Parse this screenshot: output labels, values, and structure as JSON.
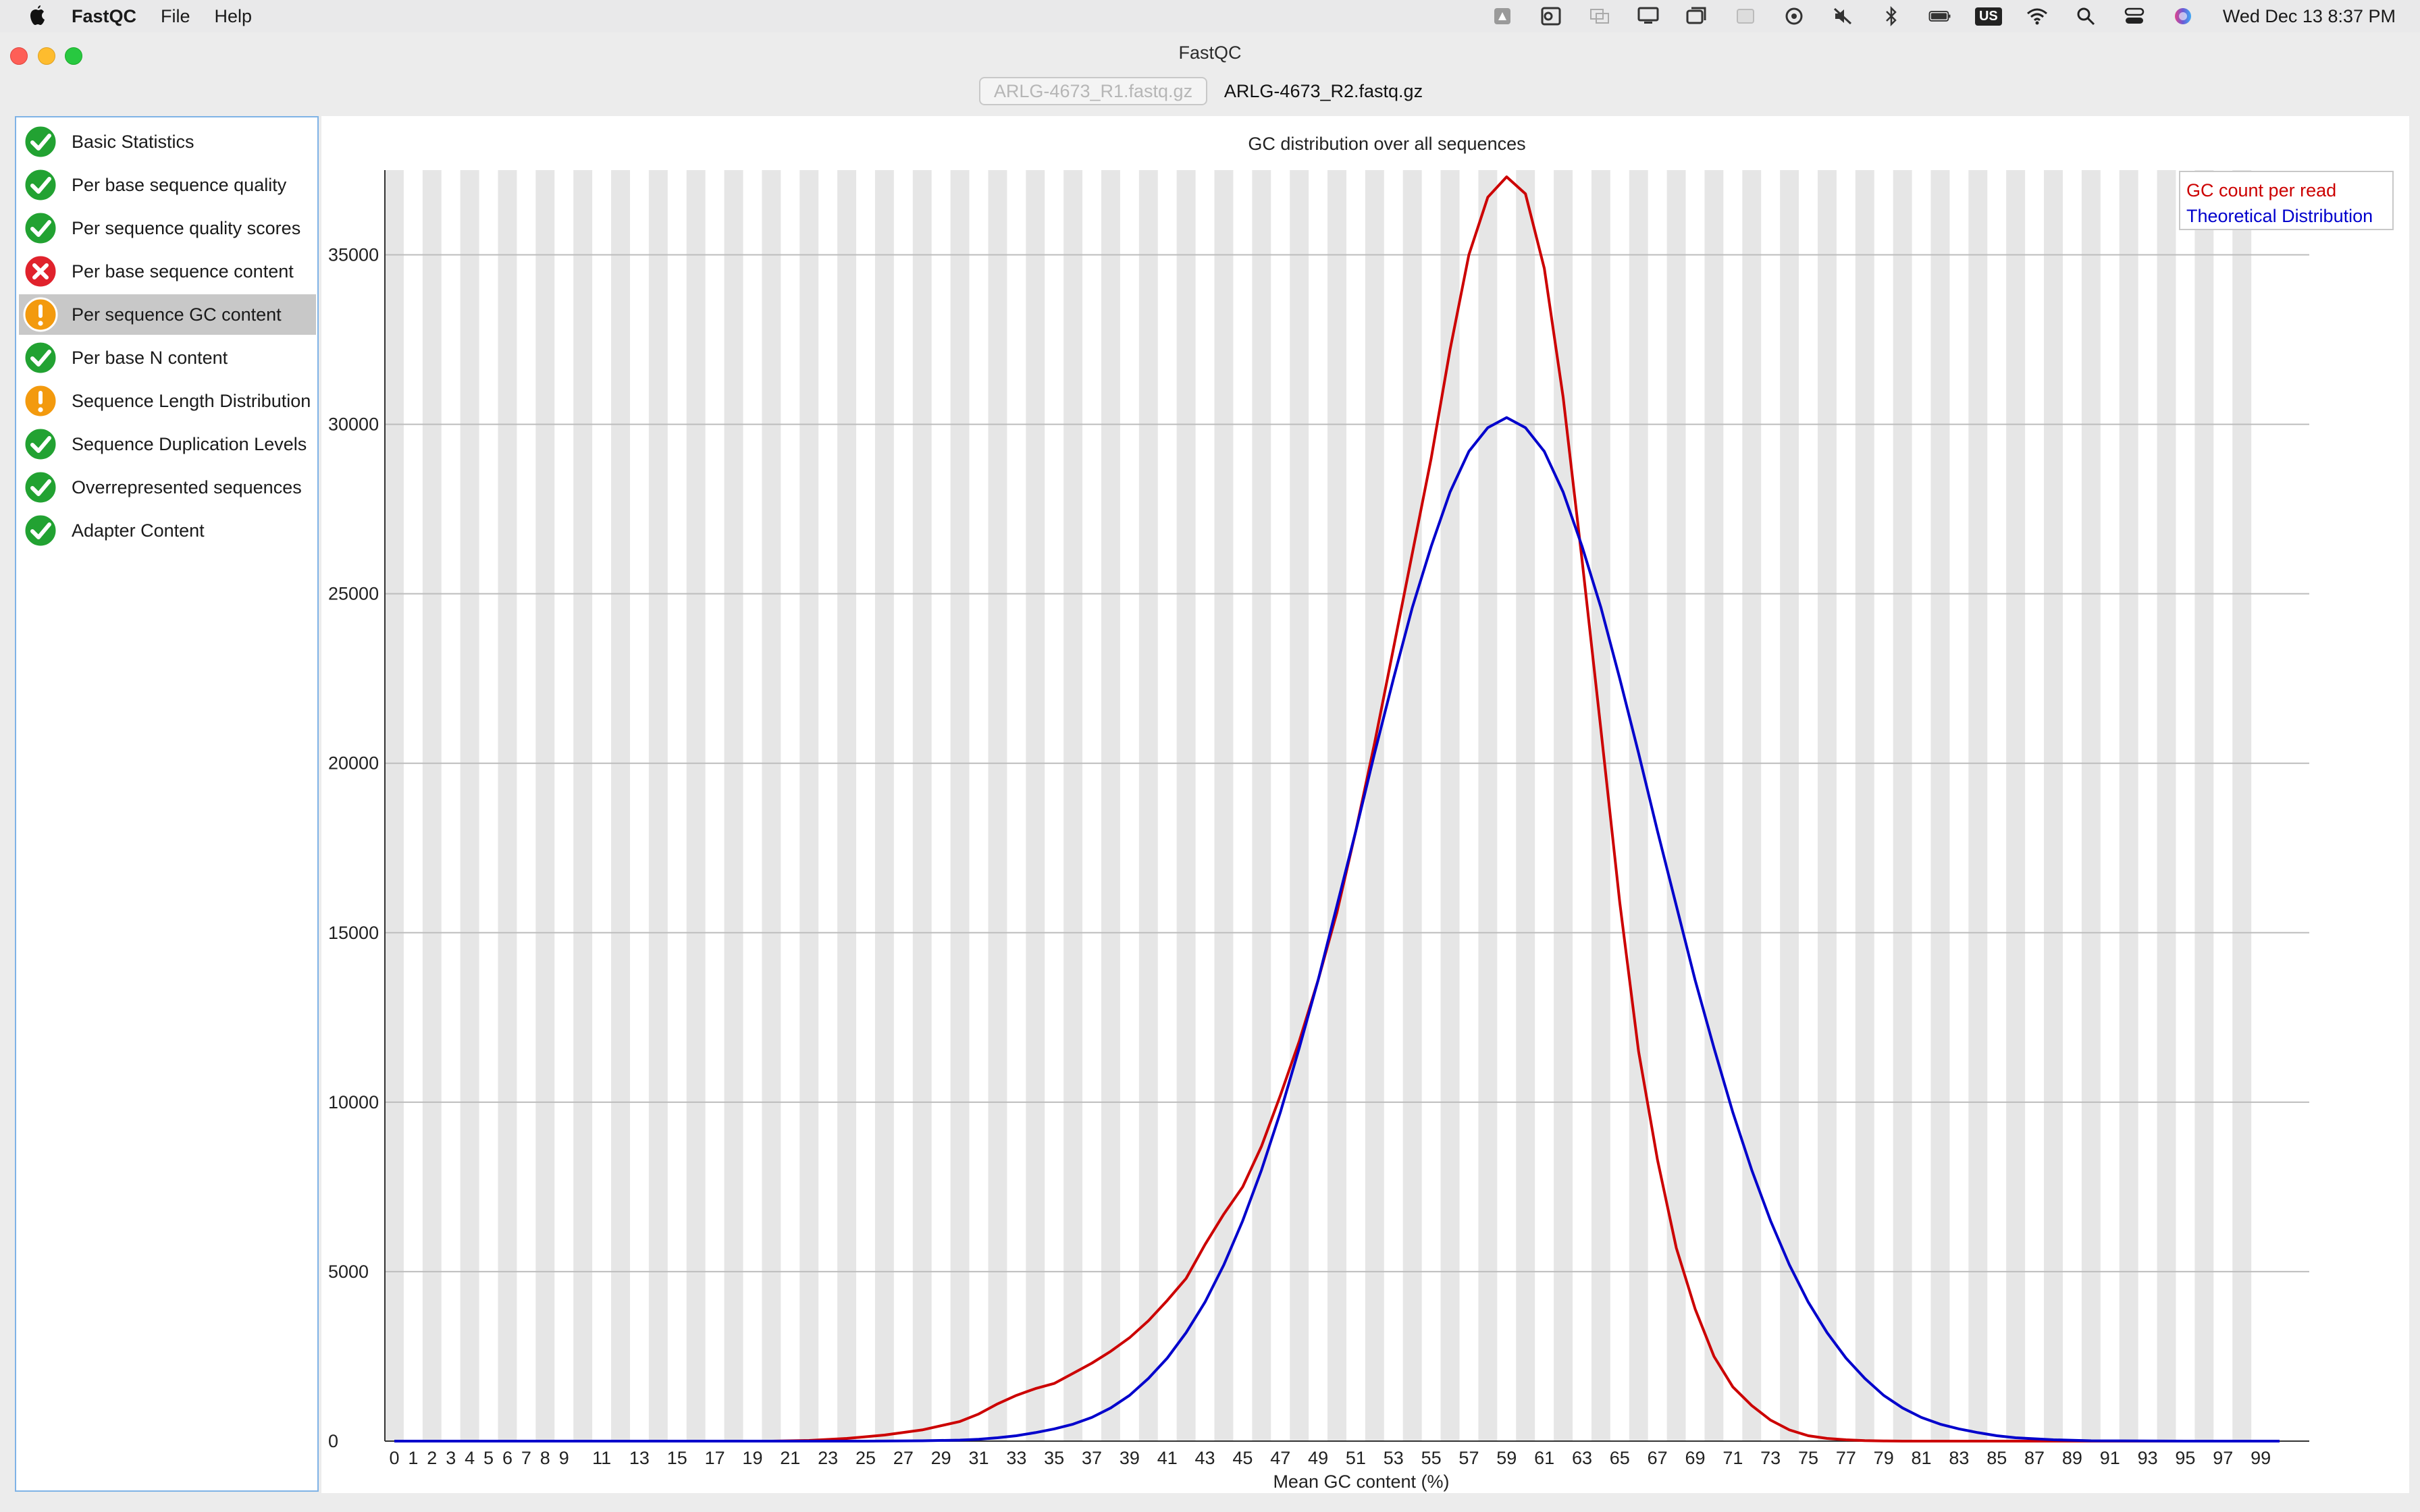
{
  "menubar": {
    "app_name": "FastQC",
    "menus": [
      "File",
      "Help"
    ],
    "status_icons": [
      "drive-icon",
      "outlook-icon",
      "screen-share-icon",
      "display-icon",
      "window-icon",
      "keyboard-brightness-icon",
      "vpn-icon",
      "mute-icon",
      "bluetooth-icon",
      "battery-icon",
      "input-source-icon",
      "wifi-icon",
      "spotlight-icon",
      "control-center-icon",
      "siri-icon"
    ],
    "input_source": "US",
    "clock": "Wed Dec 13  8:37 PM"
  },
  "window": {
    "title": "FastQC"
  },
  "file_tabs": [
    {
      "label": "ARLG-4673_R1.fastq.gz",
      "selected": false
    },
    {
      "label": "ARLG-4673_R2.fastq.gz",
      "selected": true
    }
  ],
  "modules": [
    {
      "label": "Basic Statistics",
      "status": "pass"
    },
    {
      "label": "Per base sequence quality",
      "status": "pass"
    },
    {
      "label": "Per sequence quality scores",
      "status": "pass"
    },
    {
      "label": "Per base sequence content",
      "status": "fail"
    },
    {
      "label": "Per sequence GC content",
      "status": "warn",
      "selected": true
    },
    {
      "label": "Per base N content",
      "status": "pass"
    },
    {
      "label": "Sequence Length Distribution",
      "status": "warn"
    },
    {
      "label": "Sequence Duplication Levels",
      "status": "pass"
    },
    {
      "label": "Overrepresented sequences",
      "status": "pass"
    },
    {
      "label": "Adapter Content",
      "status": "pass"
    }
  ],
  "status_colors": {
    "pass": "#22a232",
    "warn": "#f39a0e",
    "fail": "#e0222c"
  },
  "chart_data": {
    "type": "line",
    "title": "GC distribution over all sequences",
    "xlabel": "Mean GC content (%)",
    "ylabel": "",
    "xlim": [
      0,
      100
    ],
    "ylim": [
      0,
      37500
    ],
    "y_ticks": [
      0,
      5000,
      10000,
      15000,
      20000,
      25000,
      30000,
      35000
    ],
    "x_tick_labels": [
      "0",
      "1",
      "2",
      "3",
      "4",
      "5",
      "6",
      "7",
      "8",
      "9",
      "11",
      "13",
      "15",
      "17",
      "19",
      "21",
      "23",
      "25",
      "27",
      "29",
      "31",
      "33",
      "35",
      "37",
      "39",
      "41",
      "43",
      "45",
      "47",
      "49",
      "51",
      "53",
      "55",
      "57",
      "59",
      "61",
      "63",
      "65",
      "67",
      "69",
      "71",
      "73",
      "75",
      "77",
      "79",
      "81",
      "83",
      "85",
      "87",
      "89",
      "91",
      "93",
      "95",
      "97",
      "99"
    ],
    "legend_position": "top-right",
    "grid": true,
    "series": [
      {
        "name": "GC count per read",
        "color": "#cc0000",
        "x": [
          0,
          5,
          10,
          15,
          20,
          22,
          24,
          26,
          28,
          30,
          31,
          32,
          33,
          34,
          35,
          36,
          37,
          38,
          39,
          40,
          41,
          42,
          43,
          44,
          45,
          46,
          47,
          48,
          49,
          50,
          51,
          52,
          53,
          54,
          55,
          56,
          57,
          58,
          59,
          60,
          61,
          62,
          63,
          64,
          65,
          66,
          67,
          68,
          69,
          70,
          71,
          72,
          73,
          74,
          75,
          76,
          77,
          78,
          79,
          80,
          82,
          85,
          90,
          95,
          100
        ],
        "y": [
          0,
          0,
          0,
          0,
          0,
          20,
          80,
          180,
          330,
          580,
          800,
          1100,
          1350,
          1550,
          1700,
          2000,
          2300,
          2650,
          3050,
          3550,
          4150,
          4800,
          5800,
          6700,
          7500,
          8700,
          10200,
          11800,
          13600,
          15600,
          18000,
          20600,
          23400,
          26200,
          29000,
          32200,
          35000,
          36700,
          37300,
          36800,
          34600,
          30800,
          26000,
          21000,
          15900,
          11500,
          8300,
          5700,
          3900,
          2500,
          1600,
          1050,
          620,
          330,
          160,
          80,
          40,
          15,
          5,
          0,
          0,
          0,
          0,
          0,
          0
        ]
      },
      {
        "name": "Theoretical Distribution",
        "color": "#0000cc",
        "x": [
          0,
          5,
          10,
          15,
          20,
          25,
          28,
          30,
          31,
          32,
          33,
          34,
          35,
          36,
          37,
          38,
          39,
          40,
          41,
          42,
          43,
          44,
          45,
          46,
          47,
          48,
          49,
          50,
          51,
          52,
          53,
          54,
          55,
          56,
          57,
          58,
          59,
          60,
          61,
          62,
          63,
          64,
          65,
          66,
          67,
          68,
          69,
          70,
          71,
          72,
          73,
          74,
          75,
          76,
          77,
          78,
          79,
          80,
          81,
          82,
          83,
          84,
          85,
          86,
          88,
          90,
          95,
          100
        ],
        "y": [
          0,
          0,
          0,
          0,
          0,
          0,
          10,
          30,
          55,
          100,
          160,
          250,
          360,
          500,
          700,
          980,
          1350,
          1850,
          2450,
          3200,
          4100,
          5200,
          6500,
          8000,
          9700,
          11600,
          13600,
          15800,
          18000,
          20300,
          22500,
          24600,
          26400,
          28000,
          29200,
          29900,
          30200,
          29900,
          29200,
          28000,
          26400,
          24600,
          22500,
          20300,
          18000,
          15800,
          13600,
          11600,
          9700,
          8000,
          6500,
          5200,
          4100,
          3200,
          2450,
          1850,
          1350,
          980,
          700,
          500,
          360,
          250,
          160,
          100,
          40,
          10,
          0,
          0
        ]
      }
    ]
  }
}
